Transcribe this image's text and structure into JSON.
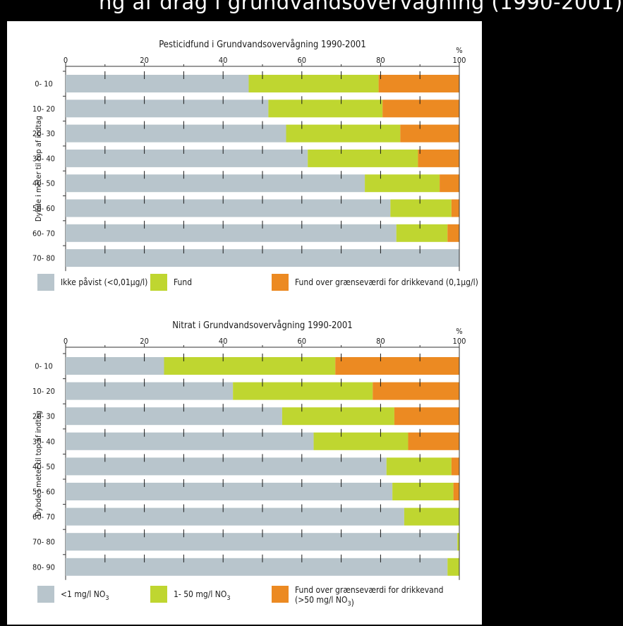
{
  "header": {
    "title": "ng af drag i grundvandsovervågning (1990-2001)"
  },
  "chart_data": [
    {
      "type": "bar",
      "orientation": "horizontal",
      "stacked": true,
      "title": "Pesticidfund i Grundvandsovervågning 1990-2001",
      "ylabel": "Dybde i meter til top af indtag",
      "xunit": "%",
      "xlim": [
        0,
        100
      ],
      "xticks": [
        "0",
        "20",
        "40",
        "60",
        "80",
        "100"
      ],
      "categories": [
        "0- 10",
        "10- 20",
        "20- 30",
        "30- 40",
        "40- 50",
        "50- 60",
        "60- 70",
        "70- 80"
      ],
      "series": [
        {
          "name": "Ikke påvist (<0,01µg/l)",
          "color": "#b8c5cc",
          "values": [
            46.5,
            51.5,
            56,
            61.5,
            76,
            82.5,
            84,
            100
          ]
        },
        {
          "name": "Fund",
          "color": "#bfd630",
          "values": [
            33,
            29,
            29,
            28,
            19,
            15.5,
            13,
            0
          ]
        },
        {
          "name": "Fund over grænseværdi for drikkevand (0,1µg/l)",
          "color": "#ec8a22",
          "values": [
            20.5,
            19.5,
            15,
            10.5,
            5,
            2,
            3,
            0
          ]
        }
      ],
      "legend": {
        "placement": "bottom"
      }
    },
    {
      "type": "bar",
      "orientation": "horizontal",
      "stacked": true,
      "title": "Nitrat i Grundvandsovervågning 1990-2001",
      "ylabel": "Dybde i meter til top af indtag",
      "xunit": "%",
      "xlim": [
        0,
        100
      ],
      "xticks": [
        "0",
        "20",
        "40",
        "60",
        "80",
        "100"
      ],
      "categories": [
        "0- 10",
        "10- 20",
        "20- 30",
        "30- 40",
        "40- 50",
        "50- 60",
        "60- 70",
        "70- 80",
        "80- 90"
      ],
      "series": [
        {
          "name": "<1 mg/l NO3",
          "color": "#b8c5cc",
          "values": [
            25,
            42.5,
            55,
            63,
            81.5,
            83,
            86,
            99.5,
            97
          ]
        },
        {
          "name": "1- 50 mg/l NO3",
          "color": "#bfd630",
          "values": [
            43.5,
            35.5,
            28.5,
            24,
            16.5,
            15.5,
            14,
            0.5,
            3
          ]
        },
        {
          "name": "Fund over grænseværdi for drikkevand (>50 mg/l NO3)",
          "color": "#ec8a22",
          "values": [
            31.5,
            22,
            16.5,
            13,
            2,
            1.5,
            0,
            0,
            0
          ]
        }
      ],
      "legend": {
        "placement": "bottom"
      }
    }
  ]
}
